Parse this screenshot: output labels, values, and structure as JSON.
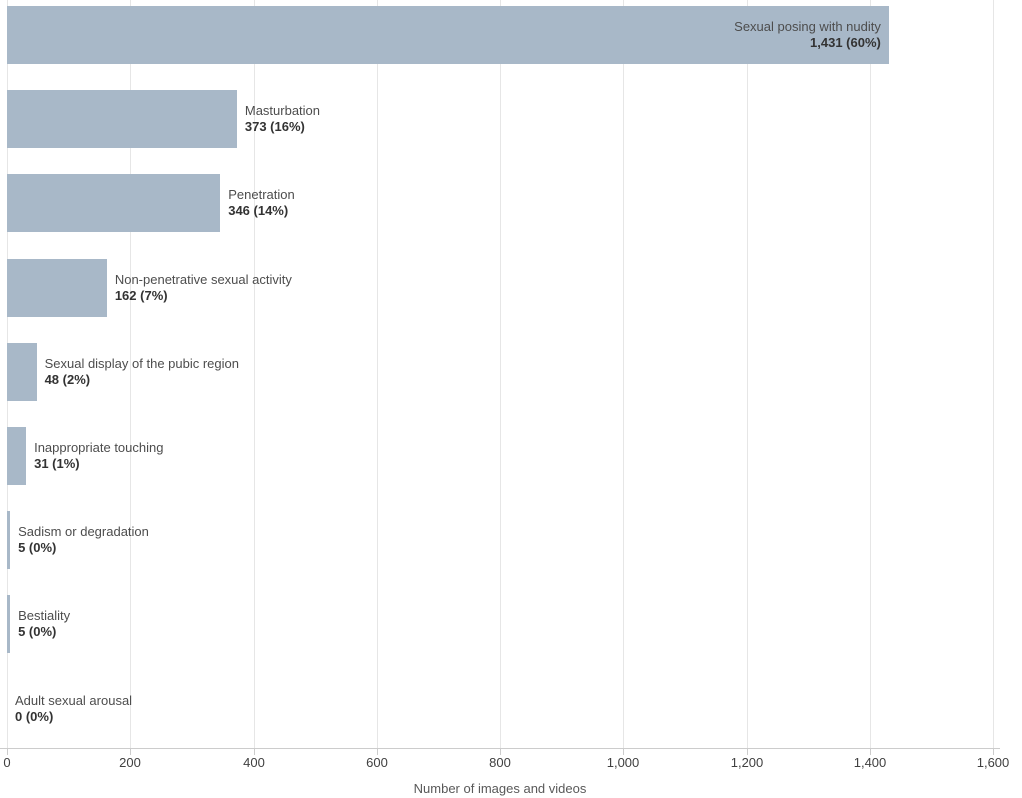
{
  "chart_data": {
    "type": "bar",
    "orientation": "horizontal",
    "title": "",
    "xlabel": "Number of images and videos",
    "ylabel": "",
    "xlim": [
      0,
      1600
    ],
    "grid": true,
    "x_ticks": [
      0,
      200,
      400,
      600,
      800,
      1000,
      1200,
      1400,
      1600
    ],
    "x_tick_labels": [
      "0",
      "200",
      "400",
      "600",
      "800",
      "1,000",
      "1,200",
      "1,400",
      "1,600"
    ],
    "categories": [
      "Sexual posing with nudity",
      "Masturbation",
      "Penetration",
      "Non-penetrative sexual activity",
      "Sexual display of the pubic region",
      "Inappropriate touching",
      "Sadism or degradation",
      "Bestiality",
      "Adult sexual arousal"
    ],
    "values": [
      1431,
      373,
      346,
      162,
      48,
      31,
      5,
      5,
      0
    ],
    "value_labels": [
      "1,431 (60%)",
      "373 (16%)",
      "346 (14%)",
      "162 (7%)",
      "48 (2%)",
      "31 (1%)",
      "5 (0%)",
      "5 (0%)",
      "0 (0%)"
    ]
  },
  "colors": {
    "bar": "#a8b8c8",
    "gridline": "#e6e6e6",
    "axis_line": "#cccccc",
    "tick_label": "#404040",
    "category_text": "#4d4d4d",
    "value_text": "#333333"
  }
}
